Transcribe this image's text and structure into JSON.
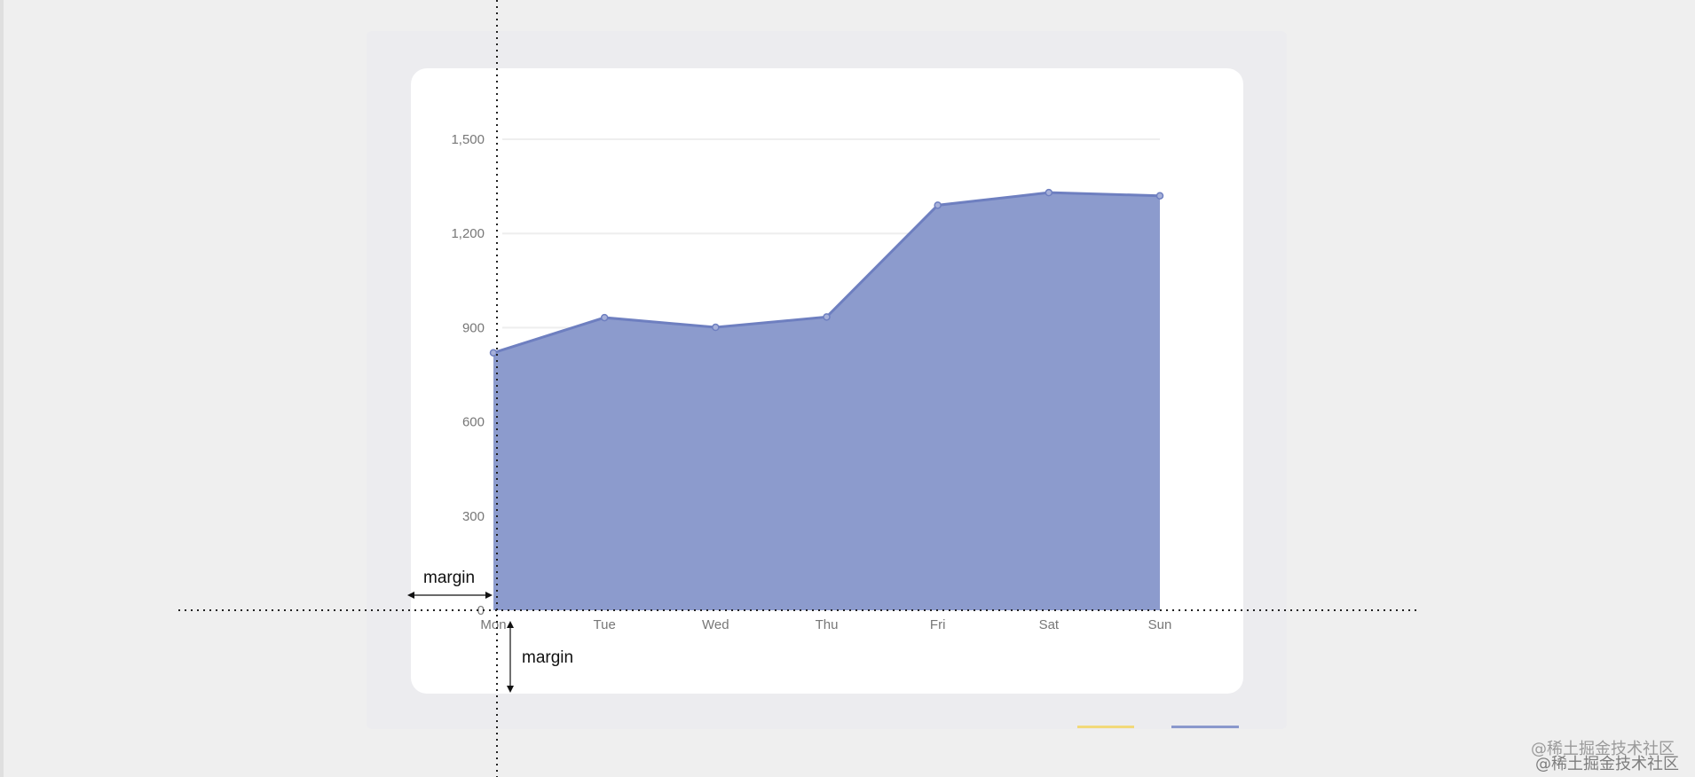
{
  "chart_data": {
    "type": "area",
    "categories": [
      "Mon",
      "Tue",
      "Wed",
      "Thu",
      "Fri",
      "Sat",
      "Sun"
    ],
    "series": [
      {
        "values": [
          820,
          932,
          901,
          934,
          1290,
          1330,
          1320
        ]
      }
    ],
    "ylim": [
      0,
      1500
    ],
    "yticks": [
      0,
      300,
      600,
      900,
      1200,
      1500
    ],
    "ytick_labels": [
      "0",
      "300",
      "600",
      "900",
      "1,200",
      "1,500"
    ],
    "grid": true,
    "colors": {
      "area": "#8a99cc",
      "line": "#6e7fc0",
      "grid": "#eeeeee",
      "tick_text": "#777777"
    }
  },
  "annotations": {
    "margin_left_label": "margin",
    "margin_bottom_label": "margin"
  },
  "watermark": {
    "line1": "@稀土掘金技术社区",
    "line2": "@稀土掘金技术社区"
  },
  "legend": {
    "colors": [
      "#f2d97a",
      "#8a98cc"
    ]
  }
}
